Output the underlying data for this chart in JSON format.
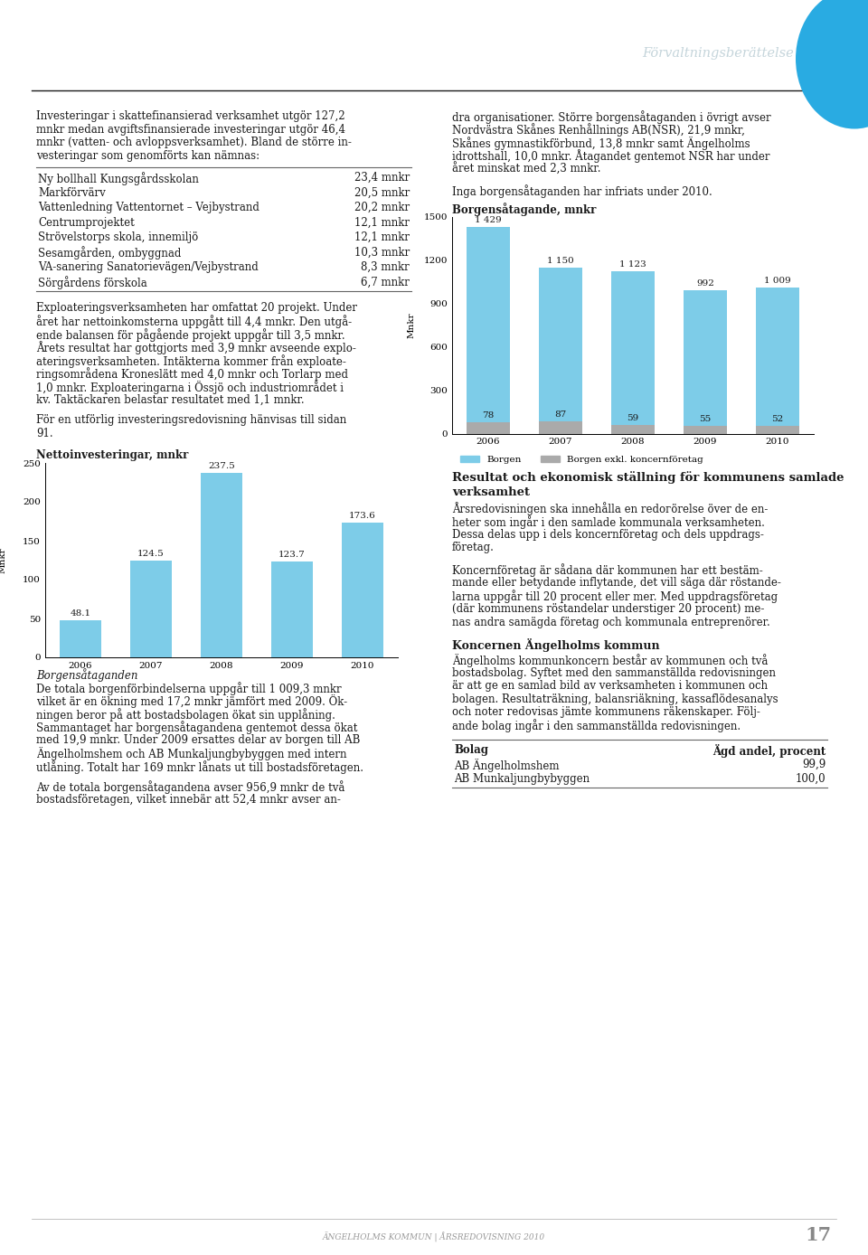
{
  "header_title": "Förvaltningsberättelse",
  "header_line_color": "#1a1a1a",
  "circle_color": "#29abe2",
  "bg_color": "#ffffff",
  "table_items": [
    [
      "Ny bollhall Kungsgårdsskolan",
      "23,4 mnkr"
    ],
    [
      "Markförvärv",
      "20,5 mnkr"
    ],
    [
      "Vattenledning Vattentornet – Vejbystrand",
      "20,2 mnkr"
    ],
    [
      "Centrumprojektet",
      "12,1 mnkr"
    ],
    [
      "Strövelstorps skola, innemiljö",
      "12,1 mnkr"
    ],
    [
      "Sesamgården, ombyggnad",
      "10,3 mnkr"
    ],
    [
      "VA-sanering Sanatorievägen/Vejbystrand",
      "8,3 mnkr"
    ],
    [
      "Sörgårdens förskola",
      "6,7 mnkr"
    ]
  ],
  "netto_title": "Nettoinvesteringar, mnkr",
  "netto_years": [
    "2006",
    "2007",
    "2008",
    "2009",
    "2010"
  ],
  "netto_values": [
    48.1,
    124.5,
    237.5,
    123.7,
    173.6
  ],
  "netto_ylim": [
    0,
    250
  ],
  "netto_yticks": [
    0,
    50,
    100,
    150,
    200,
    250
  ],
  "netto_bar_color": "#7dcce8",
  "netto_ylabel": "Mnkr",
  "borgensataganden_text": "Borgensåtaganden",
  "borgen_chart_title": "Borgensåtagande, mnkr",
  "borgen_years": [
    "2006",
    "2007",
    "2008",
    "2009",
    "2010"
  ],
  "borgen_values1": [
    1429,
    1150,
    1123,
    992,
    1009
  ],
  "borgen_labels1": [
    "1 429",
    "1 150",
    "1 123",
    "992",
    "1 009"
  ],
  "borgen_values2": [
    78,
    87,
    59,
    55,
    52
  ],
  "borgen_labels2": [
    "78",
    "87",
    "59",
    "55",
    "52"
  ],
  "borgen_ylim": [
    0,
    1500
  ],
  "borgen_yticks": [
    0,
    300,
    600,
    900,
    1200,
    1500
  ],
  "borgen_bar_color1": "#7dcce8",
  "borgen_bar_color2": "#aaaaaa",
  "borgen_ylabel": "Mnkr",
  "borgen_legend1": "Borgen",
  "borgen_legend2": "Borgen exkl. koncernföretag",
  "page_number": "17",
  "footer_text": "ÄNGELHOLMS KOMMUN | ÅRSREDOVISNING 2010",
  "font_size_body": 8.5,
  "text_color": "#1a1a1a"
}
